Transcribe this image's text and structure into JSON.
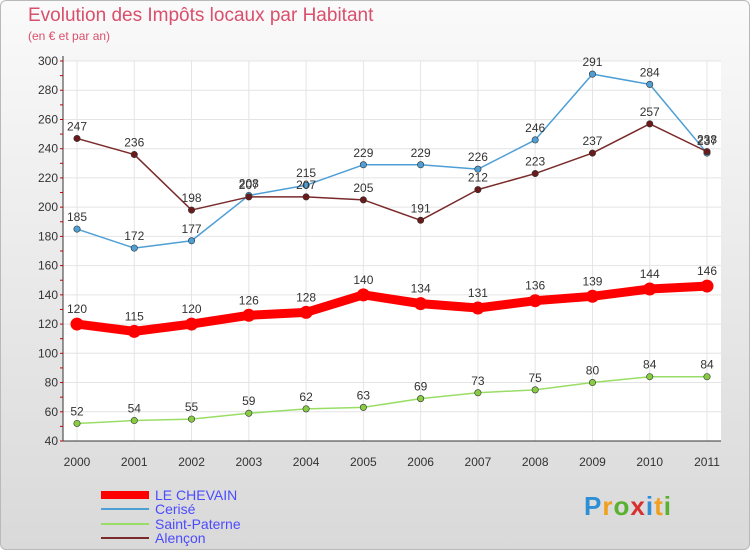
{
  "header": {
    "title": "Evolution des Impôts locaux par Habitant",
    "subtitle": "(en € et par an)"
  },
  "logo": {
    "letters": [
      "P",
      "r",
      "o",
      "x",
      "i",
      "t",
      "i"
    ],
    "colors": [
      "#2f8fd6",
      "#f0a020",
      "#5ab030",
      "#d83030",
      "#2f8fd6",
      "#f0a020",
      "#5ab030"
    ]
  },
  "chart_data": {
    "type": "line",
    "title": "Evolution des Impôts locaux par Habitant",
    "subtitle": "(en € et par an)",
    "x": [
      "2000",
      "2001",
      "2002",
      "2003",
      "2004",
      "2005",
      "2006",
      "2007",
      "2008",
      "2009",
      "2010",
      "2011"
    ],
    "ylim": [
      40,
      300
    ],
    "yticks": [
      40,
      60,
      80,
      100,
      120,
      140,
      160,
      180,
      200,
      220,
      240,
      260,
      280,
      300
    ],
    "grid": true,
    "legend_position": "bottom-left",
    "series": [
      {
        "name": "LE CHEVAIN",
        "color": "#ff0000",
        "values": [
          120,
          115,
          120,
          126,
          128,
          140,
          134,
          131,
          136,
          139,
          144,
          146
        ]
      },
      {
        "name": "Cerisé",
        "color": "#4e9fd5",
        "values": [
          185,
          172,
          177,
          208,
          215,
          229,
          229,
          226,
          246,
          291,
          284,
          237
        ]
      },
      {
        "name": "Saint-Paterne",
        "color": "#99dd66",
        "values": [
          52,
          54,
          55,
          59,
          62,
          63,
          69,
          73,
          75,
          80,
          84,
          84
        ]
      },
      {
        "name": "Alençon",
        "color": "#7a2a2a",
        "values": [
          247,
          236,
          198,
          207,
          207,
          205,
          191,
          212,
          223,
          237,
          257,
          238
        ]
      }
    ]
  }
}
